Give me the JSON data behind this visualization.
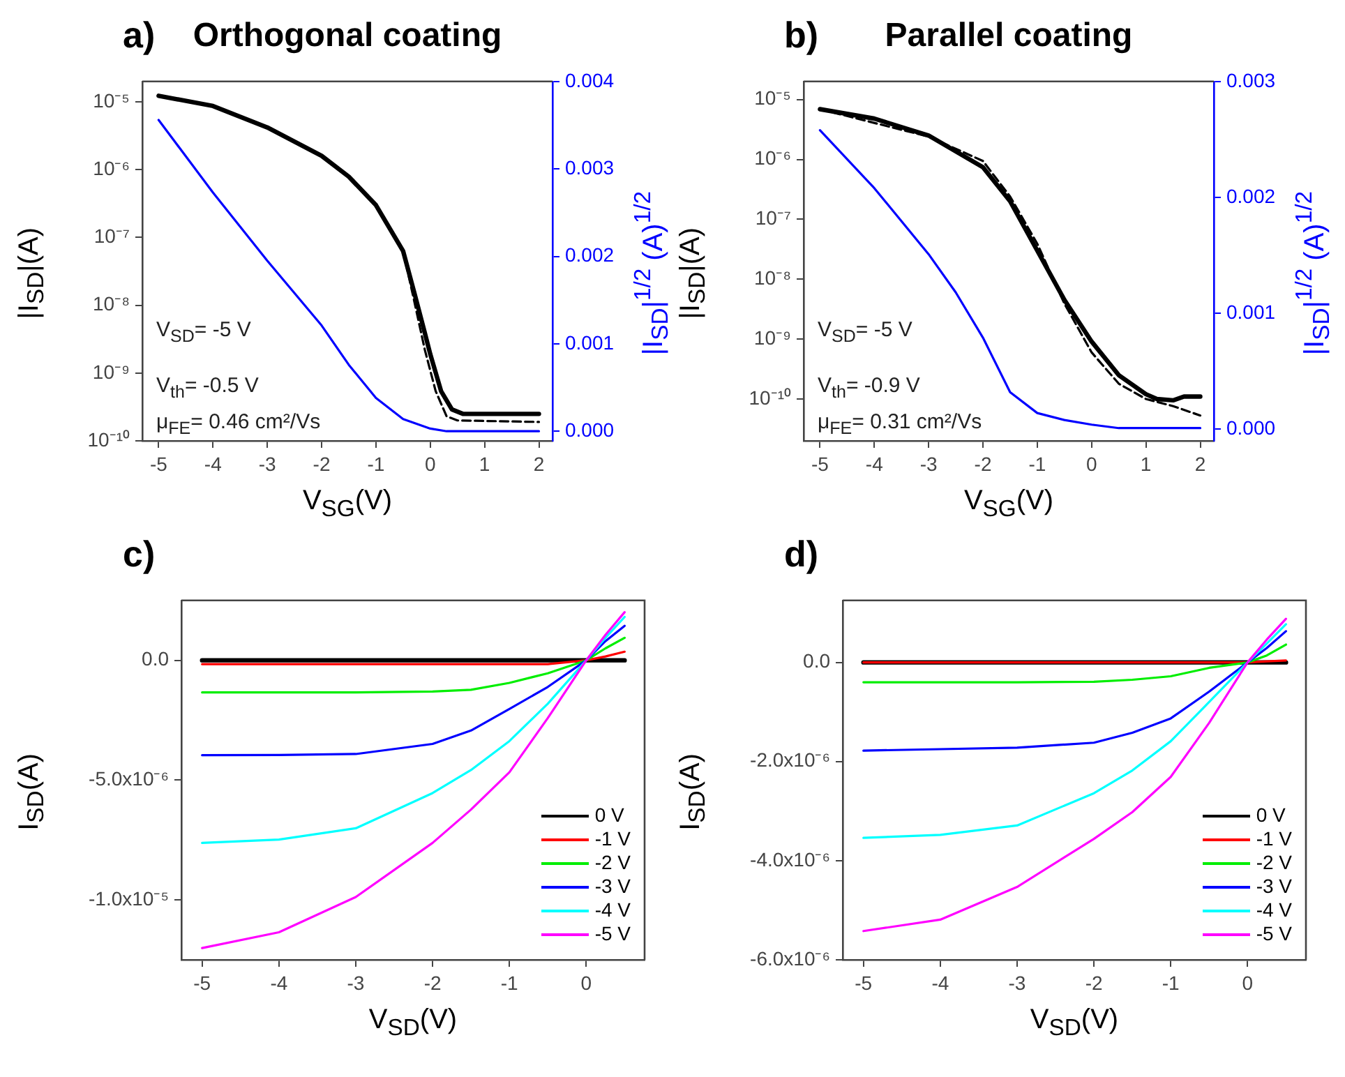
{
  "chart_data": [
    {
      "type": "line",
      "title": "Orthogonal coating",
      "xlabel": "V$_{SG}$(V)",
      "ylabel": "|I$_{SD}$|(A)",
      "y2label": "|I$_{SD}$|$^{1/2}$ (A)$^{1/2}$",
      "annotations": [
        "a)",
        "V$_{SD}$= -5 V",
        "V$_{th}$= -0.5 V",
        "μ$_{FE}$= 0.46 cm²/Vs"
      ],
      "log": "y",
      "marker": "none",
      "xlim": [
        -5.3,
        2.25
      ],
      "xticks": [
        -5,
        -4,
        -3,
        -2,
        -1,
        0,
        1,
        2
      ],
      "ylim": [
        1e-10,
        2e-05
      ],
      "yticks": [
        {
          "value": 1e-05,
          "label": "10⁻⁵"
        },
        {
          "value": 1e-06,
          "label": "10⁻⁶"
        },
        {
          "value": 1e-07,
          "label": "10⁻⁷"
        },
        {
          "value": 1e-08,
          "label": "10⁻⁸"
        },
        {
          "value": 1e-09,
          "label": "10⁻⁹"
        },
        {
          "value": 1e-10,
          "label": "10⁻¹⁰"
        }
      ],
      "y2lim": [
        -0.00011,
        0.004
      ],
      "y2ticks": [
        {
          "value": 0,
          "label": "0.000"
        },
        {
          "value": 0.001,
          "label": "0.001"
        },
        {
          "value": 0.002,
          "label": "0.002"
        },
        {
          "value": 0.003,
          "label": "0.003"
        },
        {
          "value": 0.004,
          "label": "0.004"
        }
      ],
      "series": [
        {
          "color": "#000000",
          "line_style": "solid",
          "x": [
            -5,
            -4,
            -3,
            -2,
            -1.5,
            -1,
            -0.5,
            -0.3,
            -0.1,
            0,
            0.2,
            0.4,
            0.6,
            2
          ],
          "values": [
            1.23e-05,
            8.7e-06,
            4.2e-06,
            1.6e-06,
            7.9e-07,
            3e-07,
            6.3e-08,
            1.6e-08,
            3.9e-09,
            1.9e-09,
            5.4e-10,
            2.9e-10,
            2.5e-10,
            2.5e-10
          ]
        },
        {
          "color": "#000000",
          "line_style": "dashed",
          "x": [
            -5,
            -4,
            -3,
            -2,
            -1.5,
            -1,
            -0.5,
            -0.3,
            -0.1,
            0.1,
            0.3,
            0.5,
            2
          ],
          "values": [
            1.23e-05,
            8.7e-06,
            4.2e-06,
            1.6e-06,
            7.9e-07,
            3e-07,
            6.3e-08,
            1.2e-08,
            2.2e-09,
            5.4e-10,
            2.3e-10,
            2e-10,
            1.9e-10
          ]
        },
        {
          "color": "#0000ff",
          "line_style": "solid",
          "axis": "y2",
          "x": [
            -5,
            -4,
            -3,
            -2,
            -1.5,
            -1,
            -0.5,
            0,
            0.3,
            2
          ],
          "values": [
            0.00356,
            0.00273,
            0.00195,
            0.00121,
            0.00076,
            0.00038,
            0.00014,
            3e-05,
            0,
            0
          ]
        }
      ]
    },
    {
      "type": "line",
      "title": "Parallel coating",
      "xlabel": "V$_{SG}$(V)",
      "ylabel": "|I$_{SD}$|(A)",
      "y2label": "|I$_{SD}$|$^{1/2}$ (A)$^{1/2}$",
      "annotations": [
        "b)",
        "V$_{SD}$= -5 V",
        "V$_{th}$= -0.9 V",
        "μ$_{FE}$= 0.31 cm²/Vs"
      ],
      "log": "y",
      "marker": "none",
      "xlim": [
        -5.3,
        2.25
      ],
      "xticks": [
        -5,
        -4,
        -3,
        -2,
        -1,
        0,
        1,
        2
      ],
      "ylim": [
        2e-11,
        2e-05
      ],
      "yticks": [
        {
          "value": 1e-05,
          "label": "10⁻⁵"
        },
        {
          "value": 1e-06,
          "label": "10⁻⁶"
        },
        {
          "value": 1e-07,
          "label": "10⁻⁷"
        },
        {
          "value": 1e-08,
          "label": "10⁻⁸"
        },
        {
          "value": 1e-09,
          "label": "10⁻⁹"
        },
        {
          "value": 1e-10,
          "label": "10⁻¹⁰"
        }
      ],
      "y2lim": [
        -0.0001,
        0.003
      ],
      "y2ticks": [
        {
          "value": 0,
          "label": "0.000"
        },
        {
          "value": 0.001,
          "label": "0.001"
        },
        {
          "value": 0.002,
          "label": "0.002"
        },
        {
          "value": 0.003,
          "label": "0.003"
        }
      ],
      "series": [
        {
          "color": "#000000",
          "line_style": "solid",
          "x": [
            -5,
            -4,
            -3,
            -2,
            -1.5,
            -1,
            -0.5,
            0,
            0.5,
            1,
            1.2,
            1.5,
            1.7,
            2
          ],
          "values": [
            6.9e-06,
            4.8e-06,
            2.5e-06,
            7.4e-07,
            2e-07,
            3e-08,
            4.5e-09,
            9.1e-10,
            2.5e-10,
            1.2e-10,
            1e-10,
            9.5e-11,
            1.1e-10,
            1.1e-10
          ]
        },
        {
          "color": "#000000",
          "line_style": "dashed",
          "x": [
            -5,
            -3,
            -2,
            -1.5,
            -1,
            -0.5,
            0,
            0.5,
            1,
            1.5,
            2
          ],
          "values": [
            6.9e-06,
            2.4e-06,
            9.4e-07,
            2.4e-07,
            3.9e-08,
            3.9e-09,
            6e-10,
            1.8e-10,
            1e-10,
            7.6e-11,
            5.3e-11
          ]
        },
        {
          "color": "#0000ff",
          "line_style": "solid",
          "axis": "y2",
          "x": [
            -5,
            -4,
            -3,
            -2.5,
            -2,
            -1.5,
            -1,
            -0.5,
            0,
            0.5,
            2
          ],
          "values": [
            0.00258,
            0.00208,
            0.00151,
            0.00118,
            0.00079,
            0.00032,
            0.00014,
            8e-05,
            4e-05,
            1e-05,
            1e-05
          ]
        }
      ]
    },
    {
      "type": "line",
      "xlabel": "V$_{SD}$(V)",
      "ylabel": "I$_{SD}$(A)",
      "annotations": [
        "c)"
      ],
      "legend": "bottom right",
      "marker": "none",
      "line_style": "solid",
      "xlim": [
        -5.27,
        0.76
      ],
      "xticks": [
        -5,
        -4,
        -3,
        -2,
        -1,
        0
      ],
      "ylim": [
        -1.25e-05,
        2.5e-06
      ],
      "yticks": [
        {
          "value": 0,
          "label": "0.0"
        },
        {
          "value": -5e-06,
          "label": "-5.0x10⁻⁶"
        },
        {
          "value": -1e-05,
          "label": "-1.0x10⁻⁵"
        }
      ],
      "x": [
        -5,
        -4,
        -3,
        -2,
        -1.5,
        -1,
        -0.5,
        0,
        0.25,
        0.5
      ],
      "series": [
        {
          "name": "0 V",
          "color": "#000000",
          "values": [
            0,
            0,
            0,
            0,
            0,
            0,
            0,
            0,
            0,
            0
          ]
        },
        {
          "name": "-1 V",
          "color": "#ff0000",
          "values": [
            -1.6e-07,
            -1.6e-07,
            -1.6e-07,
            -1.6e-07,
            -1.6e-07,
            -1.6e-07,
            -1.6e-07,
            0,
            1.6e-07,
            3.6e-07
          ]
        },
        {
          "name": "-2 V",
          "color": "#00ee00",
          "values": [
            -1.34e-06,
            -1.34e-06,
            -1.34e-06,
            -1.3e-06,
            -1.23e-06,
            -9.4e-07,
            -5.4e-07,
            0,
            5e-07,
            9.4e-07
          ]
        },
        {
          "name": "-3 V",
          "color": "#0000ff",
          "values": [
            -3.96e-06,
            -3.95e-06,
            -3.91e-06,
            -3.49e-06,
            -2.93e-06,
            -2.03e-06,
            -1.11e-06,
            0,
            8e-07,
            1.44e-06
          ]
        },
        {
          "name": "-4 V",
          "color": "#00ffff",
          "values": [
            -7.62e-06,
            -7.48e-06,
            -7.01e-06,
            -5.54e-06,
            -4.58e-06,
            -3.37e-06,
            -1.81e-06,
            0,
            9.4e-07,
            1.81e-06
          ]
        },
        {
          "name": "-5 V",
          "color": "#ff00ff",
          "values": [
            -1.201e-05,
            -1.135e-05,
            -9.88e-06,
            -7.62e-06,
            -6.23e-06,
            -4.67e-06,
            -2.41e-06,
            0,
            1.06e-06,
            2.01e-06
          ]
        }
      ]
    },
    {
      "type": "line",
      "xlabel": "V$_{SD}$(V)",
      "ylabel": "I$_{SD}$(A)",
      "annotations": [
        "d)"
      ],
      "legend": "bottom right",
      "marker": "none",
      "line_style": "solid",
      "xlim": [
        -5.27,
        0.76
      ],
      "xticks": [
        -5,
        -4,
        -3,
        -2,
        -1,
        0
      ],
      "ylim": [
        -6e-06,
        1.25e-06
      ],
      "yticks": [
        {
          "value": 0,
          "label": "0.0"
        },
        {
          "value": -2e-06,
          "label": "-2.0x10⁻⁶"
        },
        {
          "value": -4e-06,
          "label": "-4.0x10⁻⁶"
        },
        {
          "value": -6e-06,
          "label": "-6.0x10⁻⁶"
        }
      ],
      "x": [
        -5,
        -4,
        -3,
        -2,
        -1.5,
        -1,
        -0.5,
        0,
        0.25,
        0.5
      ],
      "series": [
        {
          "name": "0 V",
          "color": "#000000",
          "values": [
            0,
            0,
            0,
            0,
            0,
            0,
            0,
            0,
            0,
            0
          ]
        },
        {
          "name": "-1 V",
          "color": "#ff0000",
          "values": [
            0,
            0,
            0,
            0,
            0,
            0,
            0,
            0,
            2e-08,
            4e-08
          ]
        },
        {
          "name": "-2 V",
          "color": "#00ee00",
          "values": [
            -4e-07,
            -4e-07,
            -4e-07,
            -3.9e-07,
            -3.5e-07,
            -2.8e-07,
            -1.1e-07,
            0,
            1.4e-07,
            3.6e-07
          ]
        },
        {
          "name": "-3 V",
          "color": "#0000ff",
          "values": [
            -1.78e-06,
            -1.75e-06,
            -1.72e-06,
            -1.62e-06,
            -1.42e-06,
            -1.13e-06,
            -5.9e-07,
            0,
            2.9e-07,
            6.3e-07
          ]
        },
        {
          "name": "-4 V",
          "color": "#00ffff",
          "values": [
            -3.54e-06,
            -3.48e-06,
            -3.29e-06,
            -2.64e-06,
            -2.18e-06,
            -1.59e-06,
            -8e-07,
            0,
            3.8e-07,
            7.7e-07
          ]
        },
        {
          "name": "-5 V",
          "color": "#ff00ff",
          "values": [
            -5.42e-06,
            -5.19e-06,
            -4.53e-06,
            -3.56e-06,
            -3.02e-06,
            -2.31e-06,
            -1.22e-06,
            0,
            4.6e-07,
            8.8e-07
          ]
        }
      ]
    }
  ]
}
